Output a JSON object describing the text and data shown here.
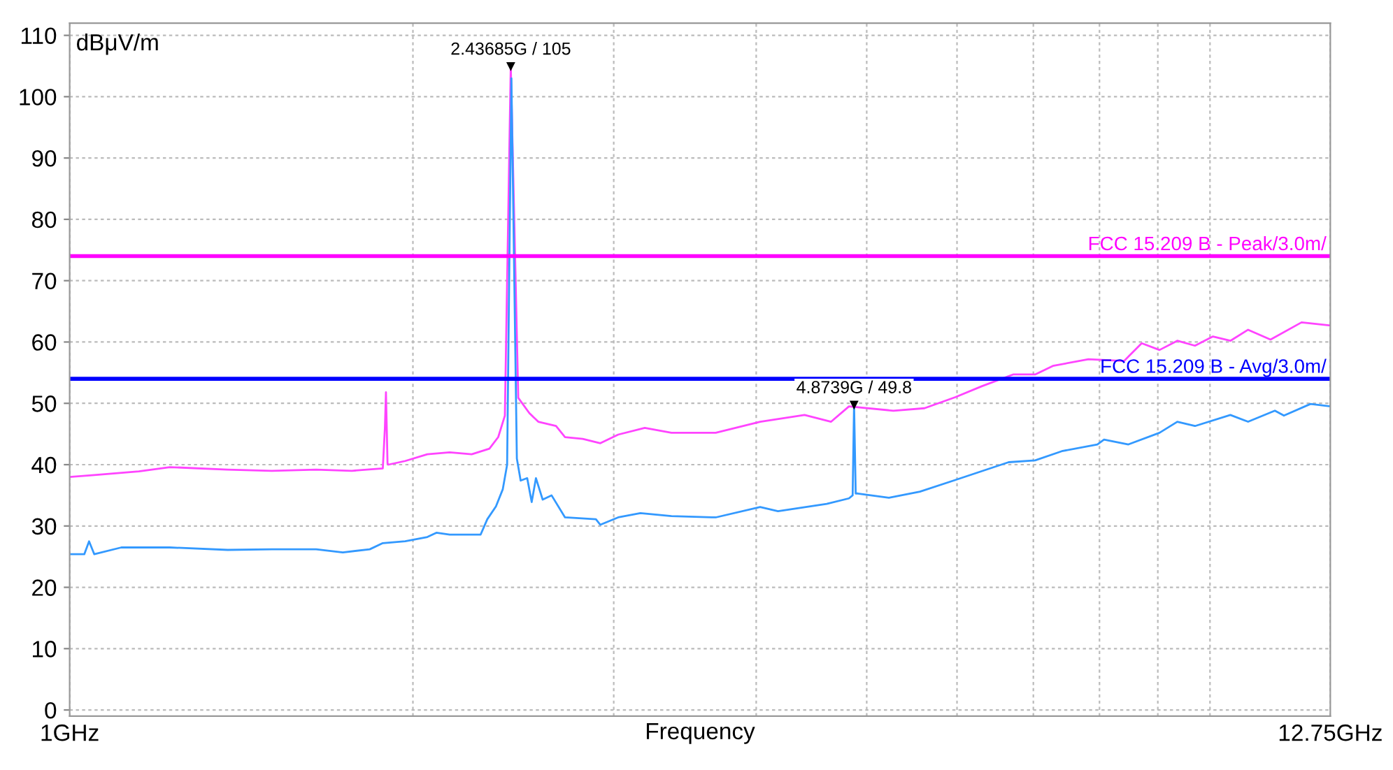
{
  "chart_data": {
    "type": "line",
    "xlabel": "Frequency",
    "ylabel": "dBμV/m",
    "log": "x",
    "xlim": [
      1,
      12.75
    ],
    "ylim": [
      -1,
      112
    ],
    "xticks": [
      {
        "value": 1,
        "label": "1GHz"
      },
      {
        "value": 2,
        "label": null
      },
      {
        "value": 3,
        "label": null
      },
      {
        "value": 4,
        "label": null
      },
      {
        "value": 5,
        "label": null
      },
      {
        "value": 6,
        "label": null
      },
      {
        "value": 7,
        "label": null
      },
      {
        "value": 8,
        "label": null
      },
      {
        "value": 9,
        "label": null
      },
      {
        "value": 10,
        "label": null
      },
      {
        "value": 12.75,
        "label": "12.75GHz"
      }
    ],
    "yticks": [
      0,
      10,
      20,
      30,
      40,
      50,
      60,
      70,
      80,
      90,
      100,
      110
    ],
    "grid": true,
    "marker": "none",
    "line_style": "solid",
    "series": [
      {
        "color": "#ff44ff",
        "x": [
          1.0,
          1.051,
          1.15,
          1.224,
          1.376,
          1.504,
          1.645,
          1.768,
          1.882,
          1.89,
          1.894,
          1.9,
          1.903,
          1.969,
          2.059,
          2.154,
          2.252,
          2.334,
          2.376,
          2.408,
          2.43685,
          2.474,
          2.53,
          2.576,
          2.67,
          2.719,
          2.818,
          2.92,
          3.027,
          3.194,
          3.371,
          3.686,
          4.032,
          4.41,
          4.653,
          4.824,
          5.276,
          5.618,
          5.978,
          6.311,
          6.719,
          7.025,
          7.281,
          7.824,
          8.406,
          8.712,
          9.031,
          9.361,
          9.701,
          10.06,
          10.42,
          10.8,
          11.3,
          12.03,
          12.75
        ],
        "values": [
          38.0,
          38.3,
          38.9,
          39.6,
          39.2,
          39.0,
          39.2,
          39.0,
          39.4,
          46,
          51.8,
          40.2,
          40.0,
          40.6,
          41.7,
          42.0,
          41.7,
          42.6,
          44.5,
          48.0,
          105,
          50.9,
          48.4,
          47.0,
          46.3,
          44.5,
          44.2,
          43.5,
          44.9,
          46.0,
          45.2,
          45.2,
          47.0,
          48.1,
          47.0,
          49.5,
          48.8,
          49.2,
          51.0,
          52.8,
          54.7,
          54.7,
          56.1,
          57.2,
          56.9,
          59.8,
          58.7,
          60.2,
          59.4,
          60.9,
          60.2,
          62.0,
          60.4,
          63.2,
          62.7
        ]
      },
      {
        "color": "#3399ff",
        "x": [
          1.0,
          1.03,
          1.04,
          1.051,
          1.11,
          1.224,
          1.376,
          1.504,
          1.645,
          1.736,
          1.833,
          1.882,
          1.969,
          2.059,
          2.097,
          2.154,
          2.293,
          2.324,
          2.365,
          2.398,
          2.419,
          2.44,
          2.467,
          2.486,
          2.519,
          2.542,
          2.564,
          2.599,
          2.646,
          2.719,
          2.894,
          2.92,
          3.027,
          3.166,
          3.371,
          3.686,
          4.032,
          4.18,
          4.612,
          4.824,
          4.86,
          4.8739,
          4.89,
          4.911,
          5.229,
          5.567,
          5.978,
          6.659,
          7.025,
          7.414,
          7.965,
          8.074,
          8.481,
          9.031,
          9.361,
          9.701,
          10.42,
          10.8,
          11.4,
          11.61,
          12.25,
          12.75
        ],
        "values": [
          25.4,
          25.4,
          27.5,
          25.4,
          26.5,
          26.5,
          26.1,
          26.2,
          26.2,
          25.7,
          26.2,
          27.2,
          27.5,
          28.2,
          28.9,
          28.6,
          28.6,
          31.1,
          33.2,
          36.0,
          40.0,
          103,
          41.0,
          37.4,
          37.8,
          33.9,
          37.8,
          34.3,
          35.0,
          31.4,
          31.1,
          30.2,
          31.4,
          32.1,
          31.6,
          31.4,
          33.1,
          32.4,
          33.6,
          34.5,
          35.0,
          49.8,
          35.3,
          35.3,
          34.6,
          35.6,
          37.5,
          40.4,
          40.7,
          42.2,
          43.3,
          44.1,
          43.3,
          45.2,
          47.0,
          46.3,
          48.1,
          47.0,
          48.8,
          48.0,
          49.9,
          49.5
        ]
      }
    ],
    "ref_lines": [
      {
        "axis": "y",
        "value": 74,
        "label": "FCC 15.209 B - Peak/3.0m/",
        "color": "#ff00ff"
      },
      {
        "axis": "y",
        "value": 54,
        "label": "FCC 15.209 B - Avg/3.0m/",
        "color": "#0000ff"
      }
    ],
    "annotations": [
      {
        "text": "2.43685G / 105",
        "x": 2.43685,
        "y": 105
      },
      {
        "text": "4.8739G / 49.8",
        "x": 4.8739,
        "y": 49.8
      }
    ]
  }
}
